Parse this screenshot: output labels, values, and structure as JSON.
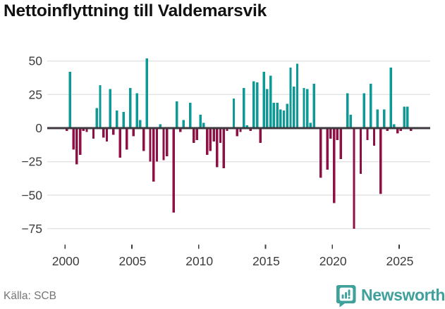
{
  "title": "Nettoinflyttning till Valdemarsvik",
  "source": "Källa: SCB",
  "logo": {
    "text": "Newsworthy"
  },
  "colors": {
    "positive_bar": "#0d9a96",
    "negative_bar": "#8e1045",
    "zero_line": "#3d383d",
    "gridline": "#e4e4e4",
    "axis_text": "#3c3c3c",
    "title_text": "#111111",
    "source_text": "#757575",
    "logo_teal": "#3fa09c",
    "background": "#ffffff"
  },
  "chart_data": {
    "type": "bar",
    "title": "Nettoinflyttning till Valdemarsvik",
    "frequency": "quarterly",
    "start_year": 2000,
    "values": [
      -2,
      42,
      -16,
      -27,
      -20,
      -2,
      -3,
      0,
      -8,
      15,
      32,
      -7,
      -10,
      29,
      -5,
      13,
      -22,
      12,
      -16,
      30,
      -6,
      26,
      6,
      -17,
      52,
      -25,
      -40,
      -25,
      3,
      -24,
      -21,
      0,
      -63,
      20,
      -3,
      6,
      0,
      19,
      -11,
      -9,
      10,
      4,
      -20,
      -17,
      -10,
      -29,
      -11,
      -30,
      -2,
      0,
      22,
      -6,
      -3,
      30,
      2,
      -2,
      35,
      34,
      -11,
      42,
      29,
      39,
      19,
      19,
      14,
      13,
      18,
      45,
      31,
      48,
      0,
      30,
      29,
      4,
      33,
      0,
      -37,
      0,
      -31,
      -8,
      -56,
      -9,
      -23,
      0,
      26,
      10,
      -75,
      0,
      -34,
      26,
      -9,
      33,
      -13,
      14,
      -49,
      14,
      -2,
      45,
      3,
      -4,
      -2,
      16,
      16,
      -2
    ],
    "x_tick_years": [
      2000,
      2005,
      2010,
      2015,
      2020,
      2025
    ],
    "x_tick_labels": [
      "2000",
      "2005",
      "2010",
      "2015",
      "2020",
      "2025"
    ],
    "y_ticks": [
      50,
      25,
      0,
      -25,
      -50,
      -75
    ],
    "y_tick_labels": [
      "50",
      "25",
      "0",
      "−25",
      "−50",
      "−75"
    ],
    "ylim": [
      -80,
      55
    ],
    "grid": "horizontal",
    "legend": "none"
  }
}
